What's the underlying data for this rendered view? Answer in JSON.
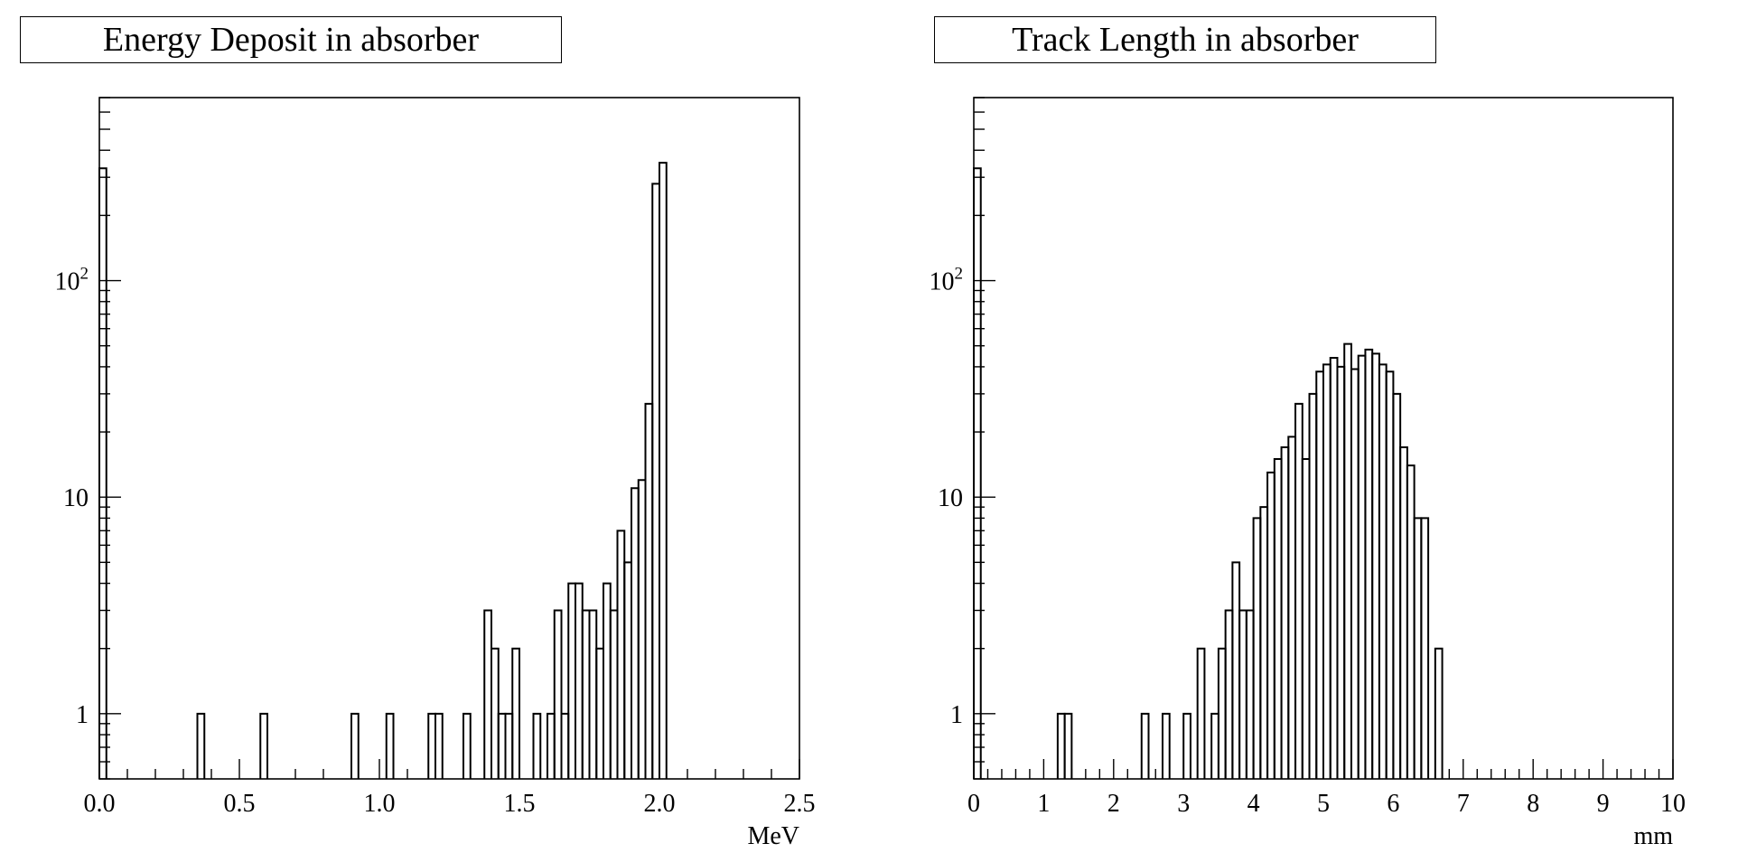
{
  "chart_data": [
    {
      "type": "histogram",
      "title": "Energy Deposit in absorber",
      "xlabel": "MeV",
      "ylabel": "",
      "xlim": [
        0.0,
        2.5
      ],
      "ylim": [
        0.5,
        700
      ],
      "yscale": "log",
      "grid": false,
      "x_ticks": [
        "0.0",
        "0.5",
        "1.0",
        "1.5",
        "2.0",
        "2.5"
      ],
      "y_ticks": [
        {
          "value": 1,
          "base": "1",
          "exp": ""
        },
        {
          "value": 10,
          "base": "10",
          "exp": ""
        },
        {
          "value": 100,
          "base": "10",
          "exp": "2"
        }
      ],
      "bin_width": 0.025,
      "bins": [
        {
          "x": 0.0,
          "count": 330
        },
        {
          "x": 0.35,
          "count": 1
        },
        {
          "x": 0.575,
          "count": 1
        },
        {
          "x": 0.9,
          "count": 1
        },
        {
          "x": 1.025,
          "count": 1
        },
        {
          "x": 1.175,
          "count": 1
        },
        {
          "x": 1.2,
          "count": 1
        },
        {
          "x": 1.3,
          "count": 1
        },
        {
          "x": 1.375,
          "count": 3
        },
        {
          "x": 1.4,
          "count": 2
        },
        {
          "x": 1.425,
          "count": 1
        },
        {
          "x": 1.45,
          "count": 1
        },
        {
          "x": 1.475,
          "count": 2
        },
        {
          "x": 1.55,
          "count": 1
        },
        {
          "x": 1.6,
          "count": 1
        },
        {
          "x": 1.625,
          "count": 3
        },
        {
          "x": 1.65,
          "count": 1
        },
        {
          "x": 1.675,
          "count": 4
        },
        {
          "x": 1.7,
          "count": 4
        },
        {
          "x": 1.725,
          "count": 3
        },
        {
          "x": 1.75,
          "count": 3
        },
        {
          "x": 1.775,
          "count": 2
        },
        {
          "x": 1.8,
          "count": 4
        },
        {
          "x": 1.825,
          "count": 3
        },
        {
          "x": 1.85,
          "count": 7
        },
        {
          "x": 1.875,
          "count": 5
        },
        {
          "x": 1.9,
          "count": 11
        },
        {
          "x": 1.925,
          "count": 12
        },
        {
          "x": 1.95,
          "count": 27
        },
        {
          "x": 1.975,
          "count": 280
        },
        {
          "x": 2.0,
          "count": 350
        }
      ]
    },
    {
      "type": "histogram",
      "title": "Track Length in absorber",
      "xlabel": "mm",
      "ylabel": "",
      "xlim": [
        0,
        10
      ],
      "ylim": [
        0.5,
        700
      ],
      "yscale": "log",
      "grid": false,
      "x_ticks": [
        "0",
        "1",
        "2",
        "3",
        "4",
        "5",
        "6",
        "7",
        "8",
        "9",
        "10"
      ],
      "y_ticks": [
        {
          "value": 1,
          "base": "1",
          "exp": ""
        },
        {
          "value": 10,
          "base": "10",
          "exp": ""
        },
        {
          "value": 100,
          "base": "10",
          "exp": "2"
        }
      ],
      "bin_width": 0.1,
      "bins": [
        {
          "x": 0.0,
          "count": 330
        },
        {
          "x": 1.2,
          "count": 1
        },
        {
          "x": 1.3,
          "count": 1
        },
        {
          "x": 2.4,
          "count": 1
        },
        {
          "x": 2.7,
          "count": 1
        },
        {
          "x": 3.0,
          "count": 1
        },
        {
          "x": 3.2,
          "count": 2
        },
        {
          "x": 3.4,
          "count": 1
        },
        {
          "x": 3.5,
          "count": 2
        },
        {
          "x": 3.6,
          "count": 3
        },
        {
          "x": 3.7,
          "count": 5
        },
        {
          "x": 3.8,
          "count": 3
        },
        {
          "x": 3.9,
          "count": 3
        },
        {
          "x": 4.0,
          "count": 8
        },
        {
          "x": 4.1,
          "count": 9
        },
        {
          "x": 4.2,
          "count": 13
        },
        {
          "x": 4.3,
          "count": 15
        },
        {
          "x": 4.4,
          "count": 17
        },
        {
          "x": 4.5,
          "count": 19
        },
        {
          "x": 4.6,
          "count": 27
        },
        {
          "x": 4.7,
          "count": 15
        },
        {
          "x": 4.8,
          "count": 30
        },
        {
          "x": 4.9,
          "count": 38
        },
        {
          "x": 5.0,
          "count": 41
        },
        {
          "x": 5.1,
          "count": 44
        },
        {
          "x": 5.2,
          "count": 40
        },
        {
          "x": 5.3,
          "count": 51
        },
        {
          "x": 5.4,
          "count": 39
        },
        {
          "x": 5.5,
          "count": 45
        },
        {
          "x": 5.6,
          "count": 48
        },
        {
          "x": 5.7,
          "count": 46
        },
        {
          "x": 5.8,
          "count": 41
        },
        {
          "x": 5.9,
          "count": 38
        },
        {
          "x": 6.0,
          "count": 30
        },
        {
          "x": 6.1,
          "count": 17
        },
        {
          "x": 6.2,
          "count": 14
        },
        {
          "x": 6.3,
          "count": 8
        },
        {
          "x": 6.4,
          "count": 8
        },
        {
          "x": 6.6,
          "count": 2
        }
      ]
    }
  ]
}
